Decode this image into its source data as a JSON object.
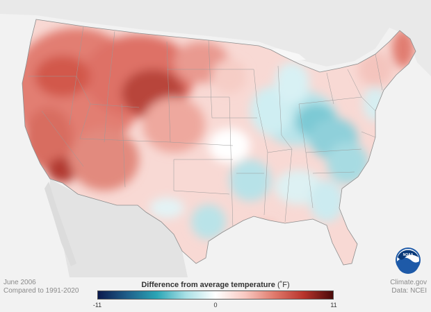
{
  "meta": {
    "date": "June 2006",
    "baseline": "Compared to 1991-2020",
    "source_site": "Climate.gov",
    "source_data": "Data: NCEI"
  },
  "legend": {
    "title": "Difference from average temperature",
    "unit": "(˚F)",
    "min": -11,
    "max": 11,
    "min_label": "-11",
    "mid_label": "0",
    "max_label": "11",
    "colors": [
      "#0b1a4d",
      "#1f5f8a",
      "#2aa5b5",
      "#a9e0e6",
      "#ffffff",
      "#f8c9c2",
      "#e07a6c",
      "#b8342c",
      "#4a0a0a"
    ]
  },
  "logo": {
    "name": "noaa-logo",
    "text": "NOAA"
  }
}
